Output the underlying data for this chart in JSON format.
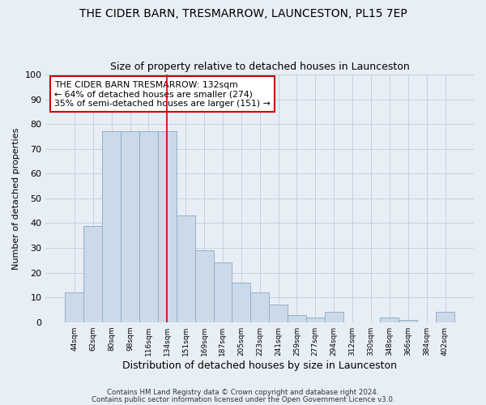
{
  "title": "THE CIDER BARN, TRESMARROW, LAUNCESTON, PL15 7EP",
  "subtitle": "Size of property relative to detached houses in Launceston",
  "xlabel": "Distribution of detached houses by size in Launceston",
  "ylabel": "Number of detached properties",
  "bar_color": "#ccd9e8",
  "bar_edge_color": "#90b0cc",
  "grid_color": "#c8d0dc",
  "vline_color": "#cc0000",
  "vline_x_index": 5,
  "categories": [
    "44sqm",
    "62sqm",
    "80sqm",
    "98sqm",
    "116sqm",
    "134sqm",
    "151sqm",
    "169sqm",
    "187sqm",
    "205sqm",
    "223sqm",
    "241sqm",
    "259sqm",
    "277sqm",
    "294sqm",
    "312sqm",
    "330sqm",
    "348sqm",
    "366sqm",
    "384sqm",
    "402sqm"
  ],
  "values": [
    12,
    39,
    77,
    77,
    77,
    77,
    43,
    29,
    24,
    16,
    12,
    7,
    3,
    2,
    4,
    0,
    0,
    2,
    1,
    0,
    4
  ],
  "ylim": [
    0,
    100
  ],
  "yticks": [
    0,
    10,
    20,
    30,
    40,
    50,
    60,
    70,
    80,
    90,
    100
  ],
  "annotation_line1": "THE CIDER BARN TRESMARROW: 132sqm",
  "annotation_line2": "← 64% of detached houses are smaller (274)",
  "annotation_line3": "35% of semi-detached houses are larger (151) →",
  "annotation_box_color": "#ffffff",
  "annotation_box_edge": "#cc0000",
  "footer1": "Contains HM Land Registry data © Crown copyright and database right 2024.",
  "footer2": "Contains public sector information licensed under the Open Government Licence v3.0.",
  "background_color": "#e8eef5",
  "plot_bg_color": "#e8eef6"
}
